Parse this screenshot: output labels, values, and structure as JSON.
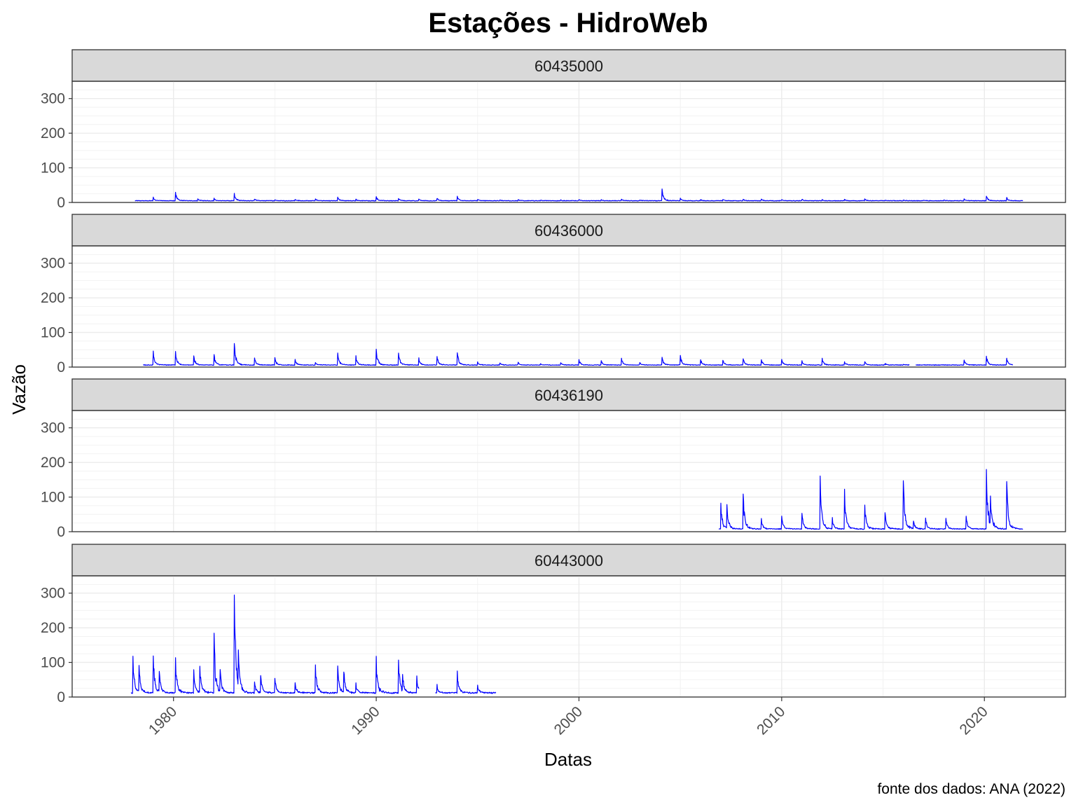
{
  "chart_data": {
    "type": "line",
    "title": "Estações - HidroWeb",
    "xlabel": "Datas",
    "ylabel": "Vazão",
    "caption": "fonte dos dados: ANA (2022)",
    "xlim": [
      1975.0,
      2024.0
    ],
    "ylim": [
      0,
      350
    ],
    "x_ticks": [
      1980,
      1990,
      2000,
      2010,
      2020
    ],
    "y_ticks": [
      0,
      100,
      200,
      300
    ],
    "grid": true,
    "line_color": "#0000ff",
    "strip_color": "#d9d9d9",
    "panels": [
      {
        "name": "60435000",
        "x_start": 1978.1,
        "x_end": 2021.9,
        "base": 5,
        "peaks": [
          [
            1979.0,
            15
          ],
          [
            1980.1,
            30
          ],
          [
            1981.2,
            10
          ],
          [
            1982.0,
            12
          ],
          [
            1983.0,
            27
          ],
          [
            1984.0,
            10
          ],
          [
            1985.0,
            8
          ],
          [
            1986.0,
            9
          ],
          [
            1987.0,
            10
          ],
          [
            1988.1,
            16
          ],
          [
            1989.0,
            9
          ],
          [
            1990.0,
            17
          ],
          [
            1991.1,
            11
          ],
          [
            1992.1,
            10
          ],
          [
            1993.0,
            12
          ],
          [
            1994.0,
            18
          ],
          [
            1995.0,
            9
          ],
          [
            1996.1,
            7
          ],
          [
            1997.0,
            8
          ],
          [
            1998.1,
            7
          ],
          [
            1999.1,
            7
          ],
          [
            2000.0,
            8
          ],
          [
            2001.1,
            8
          ],
          [
            2002.1,
            9
          ],
          [
            2003.0,
            7
          ],
          [
            2004.1,
            39
          ],
          [
            2005.0,
            12
          ],
          [
            2006.0,
            8
          ],
          [
            2007.1,
            9
          ],
          [
            2008.1,
            9
          ],
          [
            2009.0,
            10
          ],
          [
            2010.0,
            8
          ],
          [
            2011.0,
            9
          ],
          [
            2012.0,
            8
          ],
          [
            2013.1,
            9
          ],
          [
            2014.1,
            10
          ],
          [
            2015.1,
            7
          ],
          [
            2016.0,
            7
          ],
          [
            2017.0,
            7
          ],
          [
            2018.0,
            7
          ],
          [
            2019.0,
            10
          ],
          [
            2020.1,
            18
          ],
          [
            2021.1,
            14
          ]
        ],
        "gaps": []
      },
      {
        "name": "60436000",
        "x_start": 1978.5,
        "x_end": 2021.4,
        "base": 6,
        "peaks": [
          [
            1979.0,
            46
          ],
          [
            1980.1,
            45
          ],
          [
            1981.0,
            33
          ],
          [
            1982.0,
            37
          ],
          [
            1983.0,
            68
          ],
          [
            1984.0,
            26
          ],
          [
            1985.0,
            28
          ],
          [
            1986.0,
            22
          ],
          [
            1987.0,
            14
          ],
          [
            1988.1,
            40
          ],
          [
            1989.0,
            32
          ],
          [
            1990.0,
            52
          ],
          [
            1991.1,
            40
          ],
          [
            1992.1,
            26
          ],
          [
            1993.0,
            31
          ],
          [
            1994.0,
            42
          ],
          [
            1995.0,
            16
          ],
          [
            1996.1,
            12
          ],
          [
            1997.0,
            14
          ],
          [
            1998.1,
            10
          ],
          [
            1999.1,
            13
          ],
          [
            2000.0,
            22
          ],
          [
            2001.1,
            18
          ],
          [
            2002.1,
            25
          ],
          [
            2003.0,
            12
          ],
          [
            2004.1,
            28
          ],
          [
            2005.0,
            34
          ],
          [
            2006.0,
            22
          ],
          [
            2007.1,
            20
          ],
          [
            2008.1,
            24
          ],
          [
            2009.0,
            22
          ],
          [
            2010.0,
            22
          ],
          [
            2011.0,
            18
          ],
          [
            2012.0,
            26
          ],
          [
            2013.1,
            16
          ],
          [
            2014.1,
            16
          ],
          [
            2015.1,
            10
          ],
          [
            2016.0,
            8
          ],
          [
            2019.0,
            20
          ],
          [
            2020.1,
            32
          ],
          [
            2021.1,
            26
          ]
        ],
        "gaps": [
          [
            2016.3,
            2016.6
          ]
        ]
      },
      {
        "name": "60436190",
        "x_start": 2006.9,
        "x_end": 2021.9,
        "base": 8,
        "peaks": [
          [
            2007.0,
            82
          ],
          [
            2007.3,
            75
          ],
          [
            2008.1,
            110
          ],
          [
            2009.0,
            38
          ],
          [
            2010.0,
            45
          ],
          [
            2011.0,
            52
          ],
          [
            2011.9,
            160
          ],
          [
            2012.5,
            40
          ],
          [
            2013.1,
            122
          ],
          [
            2014.1,
            78
          ],
          [
            2015.1,
            55
          ],
          [
            2016.0,
            148
          ],
          [
            2016.5,
            30
          ],
          [
            2017.1,
            40
          ],
          [
            2018.1,
            38
          ],
          [
            2019.1,
            45
          ],
          [
            2020.1,
            180
          ],
          [
            2020.3,
            90
          ],
          [
            2021.1,
            145
          ]
        ],
        "gaps": []
      },
      {
        "name": "60443000",
        "x_start": 1977.9,
        "x_end": 1995.9,
        "base": 12,
        "peaks": [
          [
            1978.0,
            118
          ],
          [
            1978.3,
            85
          ],
          [
            1979.0,
            120
          ],
          [
            1979.3,
            70
          ],
          [
            1980.1,
            113
          ],
          [
            1981.0,
            80
          ],
          [
            1981.3,
            88
          ],
          [
            1982.0,
            185
          ],
          [
            1982.3,
            78
          ],
          [
            1983.0,
            293
          ],
          [
            1983.2,
            115
          ],
          [
            1984.0,
            45
          ],
          [
            1984.3,
            60
          ],
          [
            1985.0,
            55
          ],
          [
            1986.0,
            42
          ],
          [
            1987.0,
            92
          ],
          [
            1988.1,
            90
          ],
          [
            1988.4,
            70
          ],
          [
            1989.0,
            40
          ],
          [
            1990.0,
            117
          ],
          [
            1991.1,
            108
          ],
          [
            1991.3,
            55
          ],
          [
            1992.0,
            62
          ],
          [
            1993.0,
            35
          ],
          [
            1994.0,
            75
          ],
          [
            1995.0,
            35
          ]
        ],
        "gaps": [
          [
            1992.1,
            1992.9
          ]
        ]
      }
    ]
  }
}
